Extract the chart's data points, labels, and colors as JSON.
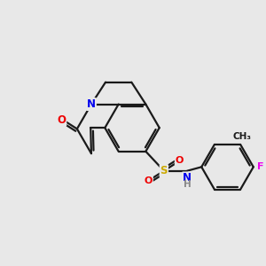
{
  "background_color": "#e8e8e8",
  "bond_color": "#1a1a1a",
  "bond_width": 1.6,
  "atom_colors": {
    "N": "#0000ee",
    "O": "#ee0000",
    "S": "#ccaa00",
    "F": "#ee00ee",
    "H": "#888888",
    "C": "#1a1a1a"
  },
  "figsize": [
    3.0,
    3.0
  ],
  "dpi": 100
}
